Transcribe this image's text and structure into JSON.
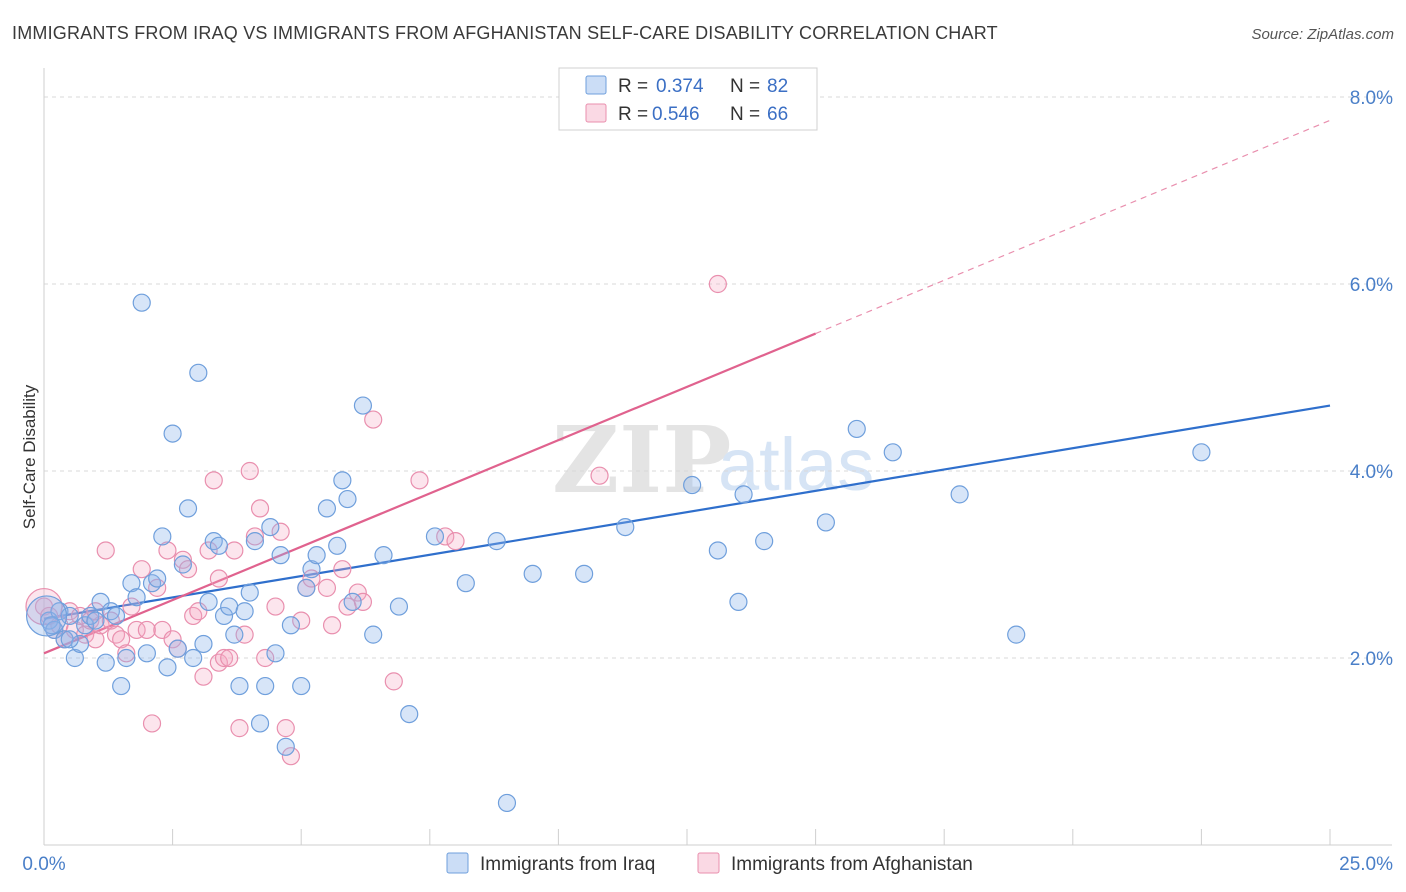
{
  "chart_data": {
    "type": "scatter",
    "title": "IMMIGRANTS FROM IRAQ VS IMMIGRANTS FROM AFGHANISTAN SELF-CARE DISABILITY CORRELATION CHART",
    "source": "Source: ZipAtlas.com",
    "ylabel": "Self-Care Disability",
    "xlabel": "",
    "xlim": [
      0,
      25
    ],
    "ylim": [
      0,
      8.0
    ],
    "x_tick_labels": [
      "0.0%",
      "25.0%"
    ],
    "y_tick_labels": [
      {
        "value": 2.0,
        "label": "2.0%"
      },
      {
        "value": 4.0,
        "label": "4.0%"
      },
      {
        "value": 6.0,
        "label": "6.0%"
      },
      {
        "value": 8.0,
        "label": "8.0%"
      }
    ],
    "legend": [
      {
        "series": "Immigrants from Iraq",
        "r_label": "R =",
        "r": "0.374",
        "n_label": "N =",
        "n": "82",
        "color": "#6f9fdc"
      },
      {
        "series": "Immigrants from Afghanistan",
        "r_label": "R =",
        "r": "0.546",
        "n_label": "N =",
        "n": "66",
        "color": "#e98fae"
      }
    ],
    "watermark": {
      "part1": "ZIP",
      "part2": "atlas"
    },
    "series": [
      {
        "name": "Immigrants from Iraq",
        "color": "#6f9fdc",
        "trend": {
          "x0": 0,
          "y0": 2.42,
          "x1": 25,
          "y1": 4.7,
          "solid_to": 25
        },
        "points": [
          [
            0.1,
            2.4
          ],
          [
            0.2,
            2.3
          ],
          [
            0.3,
            2.5
          ],
          [
            0.4,
            2.2
          ],
          [
            0.5,
            2.45
          ],
          [
            0.6,
            2.0
          ],
          [
            0.7,
            2.15
          ],
          [
            0.8,
            2.35
          ],
          [
            0.9,
            2.45
          ],
          [
            1.0,
            2.4
          ],
          [
            1.1,
            2.6
          ],
          [
            1.2,
            1.95
          ],
          [
            1.3,
            2.5
          ],
          [
            1.4,
            2.45
          ],
          [
            1.5,
            1.7
          ],
          [
            1.6,
            2.0
          ],
          [
            1.7,
            2.8
          ],
          [
            1.8,
            2.65
          ],
          [
            1.9,
            5.8
          ],
          [
            2.0,
            2.05
          ],
          [
            2.1,
            2.8
          ],
          [
            2.2,
            2.85
          ],
          [
            2.3,
            3.3
          ],
          [
            2.4,
            1.9
          ],
          [
            2.5,
            4.4
          ],
          [
            2.6,
            2.1
          ],
          [
            2.7,
            3.0
          ],
          [
            2.8,
            3.6
          ],
          [
            2.9,
            2.0
          ],
          [
            3.0,
            5.05
          ],
          [
            3.1,
            2.15
          ],
          [
            3.2,
            2.6
          ],
          [
            3.3,
            3.25
          ],
          [
            3.4,
            3.2
          ],
          [
            3.5,
            2.45
          ],
          [
            3.6,
            2.55
          ],
          [
            3.7,
            2.25
          ],
          [
            3.8,
            1.7
          ],
          [
            3.9,
            2.5
          ],
          [
            4.0,
            2.7
          ],
          [
            4.1,
            3.25
          ],
          [
            4.2,
            1.3
          ],
          [
            4.3,
            1.7
          ],
          [
            4.4,
            3.4
          ],
          [
            4.5,
            2.05
          ],
          [
            4.6,
            3.1
          ],
          [
            4.7,
            1.05
          ],
          [
            4.8,
            2.35
          ],
          [
            5.0,
            1.7
          ],
          [
            5.1,
            2.75
          ],
          [
            5.2,
            2.95
          ],
          [
            5.3,
            3.1
          ],
          [
            5.5,
            3.6
          ],
          [
            5.7,
            3.2
          ],
          [
            5.8,
            3.9
          ],
          [
            5.9,
            3.7
          ],
          [
            6.0,
            2.6
          ],
          [
            6.2,
            4.7
          ],
          [
            6.4,
            2.25
          ],
          [
            6.6,
            3.1
          ],
          [
            6.9,
            2.55
          ],
          [
            7.1,
            1.4
          ],
          [
            7.6,
            3.3
          ],
          [
            8.2,
            2.8
          ],
          [
            8.8,
            3.25
          ],
          [
            9.0,
            0.45
          ],
          [
            9.5,
            2.9
          ],
          [
            10.5,
            2.9
          ],
          [
            11.3,
            3.4
          ],
          [
            12.6,
            3.85
          ],
          [
            13.1,
            3.15
          ],
          [
            13.5,
            2.6
          ],
          [
            13.6,
            3.75
          ],
          [
            14.0,
            3.25
          ],
          [
            15.2,
            3.45
          ],
          [
            15.8,
            4.45
          ],
          [
            16.5,
            4.2
          ],
          [
            17.8,
            3.75
          ],
          [
            18.9,
            2.25
          ],
          [
            22.5,
            4.2
          ],
          [
            0.15,
            2.35
          ],
          [
            0.5,
            2.2
          ]
        ]
      },
      {
        "name": "Immigrants from Afghanistan",
        "color": "#e98fae",
        "trend": {
          "x0": 0,
          "y0": 2.05,
          "x1": 25,
          "y1": 7.75,
          "solid_to": 15
        },
        "points": [
          [
            0.0,
            2.55
          ],
          [
            0.1,
            2.45
          ],
          [
            0.2,
            2.3
          ],
          [
            0.3,
            2.35
          ],
          [
            0.4,
            2.2
          ],
          [
            0.5,
            2.5
          ],
          [
            0.6,
            2.3
          ],
          [
            0.7,
            2.45
          ],
          [
            0.8,
            2.25
          ],
          [
            0.9,
            2.4
          ],
          [
            1.0,
            2.2
          ],
          [
            1.1,
            2.35
          ],
          [
            1.2,
            3.15
          ],
          [
            1.3,
            2.4
          ],
          [
            1.4,
            2.25
          ],
          [
            1.5,
            2.2
          ],
          [
            1.6,
            2.05
          ],
          [
            1.7,
            2.55
          ],
          [
            1.8,
            2.3
          ],
          [
            1.9,
            2.95
          ],
          [
            2.0,
            2.3
          ],
          [
            2.1,
            1.3
          ],
          [
            2.2,
            2.75
          ],
          [
            2.3,
            2.3
          ],
          [
            2.4,
            3.15
          ],
          [
            2.5,
            2.2
          ],
          [
            2.6,
            2.1
          ],
          [
            2.7,
            3.05
          ],
          [
            2.8,
            2.95
          ],
          [
            2.9,
            2.45
          ],
          [
            3.0,
            2.5
          ],
          [
            3.1,
            1.8
          ],
          [
            3.2,
            3.15
          ],
          [
            3.3,
            3.9
          ],
          [
            3.4,
            1.95
          ],
          [
            3.5,
            2.0
          ],
          [
            3.6,
            2.0
          ],
          [
            3.7,
            3.15
          ],
          [
            3.8,
            1.25
          ],
          [
            3.9,
            2.25
          ],
          [
            4.0,
            4.0
          ],
          [
            4.1,
            3.3
          ],
          [
            4.2,
            3.6
          ],
          [
            4.3,
            2.0
          ],
          [
            4.5,
            2.55
          ],
          [
            4.6,
            3.35
          ],
          [
            4.7,
            1.25
          ],
          [
            4.8,
            0.95
          ],
          [
            5.0,
            2.4
          ],
          [
            5.1,
            2.75
          ],
          [
            5.2,
            2.85
          ],
          [
            5.5,
            2.75
          ],
          [
            5.6,
            2.35
          ],
          [
            5.8,
            2.95
          ],
          [
            5.9,
            2.55
          ],
          [
            6.1,
            2.7
          ],
          [
            6.2,
            2.6
          ],
          [
            6.4,
            4.55
          ],
          [
            6.8,
            1.75
          ],
          [
            7.3,
            3.9
          ],
          [
            7.8,
            3.3
          ],
          [
            8.0,
            3.25
          ],
          [
            10.8,
            3.95
          ],
          [
            13.1,
            6.0
          ],
          [
            3.4,
            2.85
          ],
          [
            1.0,
            2.5
          ]
        ]
      }
    ]
  }
}
